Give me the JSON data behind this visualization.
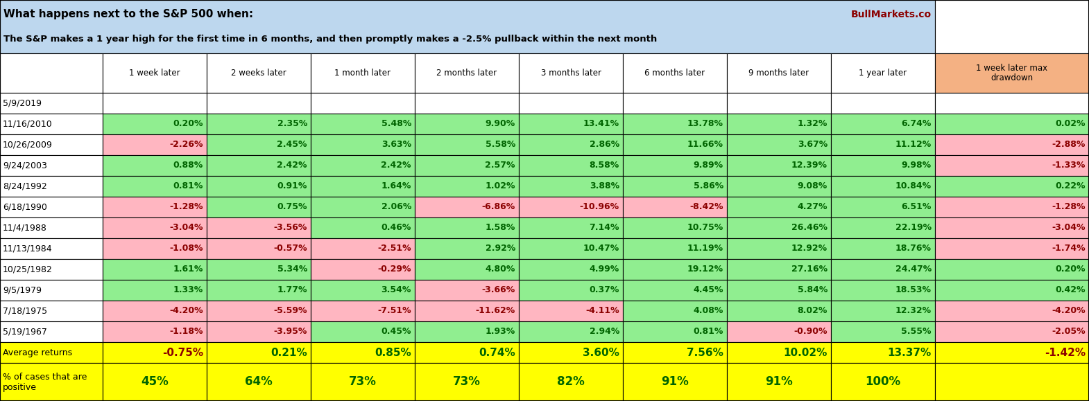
{
  "title1": "What happens next to the S&P 500 when:",
  "title2": "The S&P makes a 1 year high for the first time in 6 months, and then promptly makes a -2.5% pullback within the next month",
  "watermark": "BullMarkets.co",
  "col_headers": [
    "1 week later",
    "2 weeks later",
    "1 month later",
    "2 months later",
    "3 months later",
    "6 months later",
    "9 months later",
    "1 year later",
    "1 week later max\ndrawdown"
  ],
  "row_labels": [
    "5/9/2019",
    "11/16/2010",
    "10/26/2009",
    "9/24/2003",
    "8/24/1992",
    "6/18/1990",
    "11/4/1988",
    "11/13/1984",
    "10/25/1982",
    "9/5/1979",
    "7/18/1975",
    "5/19/1967"
  ],
  "data": [
    [
      null,
      null,
      null,
      null,
      null,
      null,
      null,
      null,
      null
    ],
    [
      0.2,
      2.35,
      5.48,
      9.9,
      13.41,
      13.78,
      1.32,
      6.74,
      0.02
    ],
    [
      -2.26,
      2.45,
      3.63,
      5.58,
      2.86,
      11.66,
      3.67,
      11.12,
      -2.88
    ],
    [
      0.88,
      2.42,
      2.42,
      2.57,
      8.58,
      9.89,
      12.39,
      9.98,
      -1.33
    ],
    [
      0.81,
      0.91,
      1.64,
      1.02,
      3.88,
      5.86,
      9.08,
      10.84,
      0.22
    ],
    [
      -1.28,
      0.75,
      2.06,
      -6.86,
      -10.96,
      -8.42,
      4.27,
      6.51,
      -1.28
    ],
    [
      -3.04,
      -3.56,
      0.46,
      1.58,
      7.14,
      10.75,
      26.46,
      22.19,
      -3.04
    ],
    [
      -1.08,
      -0.57,
      -2.51,
      2.92,
      10.47,
      11.19,
      12.92,
      18.76,
      -1.74
    ],
    [
      1.61,
      5.34,
      -0.29,
      4.8,
      4.99,
      19.12,
      27.16,
      24.47,
      0.2
    ],
    [
      1.33,
      1.77,
      3.54,
      -3.66,
      0.37,
      4.45,
      5.84,
      18.53,
      0.42
    ],
    [
      -4.2,
      -5.59,
      -7.51,
      -11.62,
      -4.11,
      4.08,
      8.02,
      12.32,
      -4.2
    ],
    [
      -1.18,
      -3.95,
      0.45,
      1.93,
      2.94,
      0.81,
      -0.9,
      5.55,
      -2.05
    ]
  ],
  "avg_row": [
    -0.75,
    0.21,
    0.85,
    0.74,
    3.6,
    7.56,
    10.02,
    13.37,
    -1.42
  ],
  "pct_row": [
    45,
    64,
    73,
    73,
    82,
    91,
    91,
    100,
    null
  ],
  "color_pos": "#90EE90",
  "color_neg": "#FFB6C1",
  "color_header_main": "#BDD7EE",
  "color_header_last": "#F4B183",
  "color_avg": "#FFFF00",
  "color_white": "#FFFFFF",
  "text_pos": "#006400",
  "text_neg": "#8B0000",
  "text_label": "#000000",
  "border_color": "#000000"
}
